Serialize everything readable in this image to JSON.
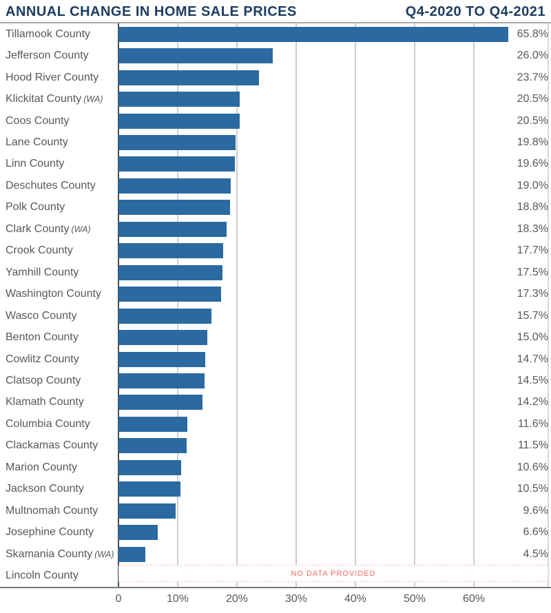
{
  "chart_data": {
    "type": "bar",
    "orientation": "horizontal",
    "title": "ANNUAL CHANGE IN HOME SALE PRICES",
    "subtitle": "Q4-2020 TO Q4-2021",
    "xlabel": "",
    "ylabel": "",
    "xlim": [
      0,
      72.5
    ],
    "grid": true,
    "x_ticks": [
      {
        "value": 0,
        "label": "0"
      },
      {
        "value": 10,
        "label": "10%"
      },
      {
        "value": 20,
        "label": "20%"
      },
      {
        "value": 30,
        "label": "30%"
      },
      {
        "value": 40,
        "label": "40%"
      },
      {
        "value": 50,
        "label": "50%"
      },
      {
        "value": 60,
        "label": "60%"
      }
    ],
    "categories": [
      "Tillamook County",
      "Jefferson County",
      "Hood River County",
      "Klickitat County",
      "Coos County",
      "Lane County",
      "Linn County",
      "Deschutes County",
      "Polk County",
      "Clark County",
      "Crook County",
      "Yamhill County",
      "Washington County",
      "Wasco County",
      "Benton County",
      "Cowlitz County",
      "Clatsop County",
      "Klamath County",
      "Columbia County",
      "Clackamas County",
      "Marion County",
      "Jackson County",
      "Multnomah County",
      "Josephine County",
      "Skamania County",
      "Lincoln County"
    ],
    "state_annotations": [
      "",
      "",
      "",
      "(WA)",
      "",
      "",
      "",
      "",
      "",
      "(WA)",
      "",
      "",
      "",
      "",
      "",
      "",
      "",
      "",
      "",
      "",
      "",
      "",
      "",
      "",
      "(WA)",
      ""
    ],
    "values": [
      65.8,
      26.0,
      23.7,
      20.5,
      20.5,
      19.8,
      19.6,
      19.0,
      18.8,
      18.3,
      17.7,
      17.5,
      17.3,
      15.7,
      15.0,
      14.7,
      14.5,
      14.2,
      11.6,
      11.5,
      10.6,
      10.5,
      9.6,
      6.6,
      4.5,
      null
    ],
    "value_labels": [
      "65.8%",
      "26.0%",
      "23.7%",
      "20.5%",
      "20.5%",
      "19.8%",
      "19.6%",
      "19.0%",
      "18.8%",
      "18.3%",
      "17.7%",
      "17.5%",
      "17.3%",
      "15.7%",
      "15.0%",
      "14.7%",
      "14.5%",
      "14.2%",
      "11.6%",
      "11.5%",
      "10.6%",
      "10.5%",
      "9.6%",
      "6.6%",
      "4.5%",
      ""
    ],
    "no_data_text": "NO DATA PROVIDED",
    "colors": {
      "bar": "#2a6aa0",
      "title": "#1c3c5f",
      "label_text": "#55585a",
      "gridline": "#cbced0",
      "zero_axis": "#4b4c4e",
      "baseline": "#77787a",
      "no_data_text": "#f2695c",
      "no_data_border": "#f8c5bc"
    }
  }
}
